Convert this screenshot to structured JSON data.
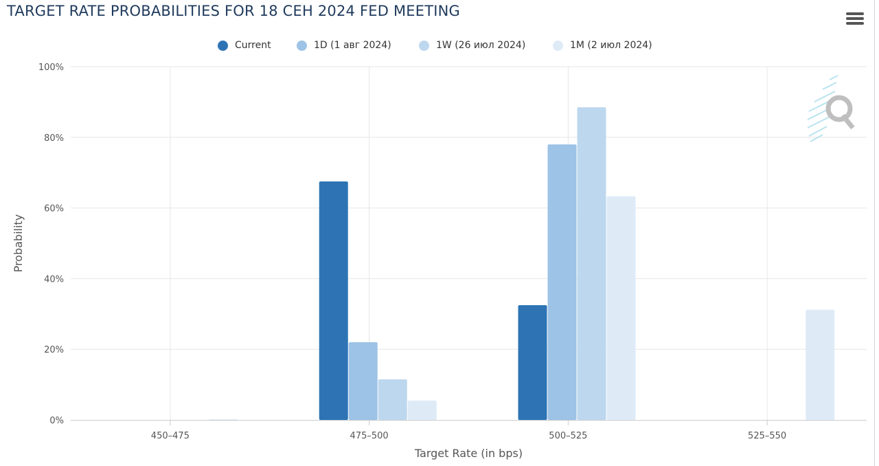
{
  "header": {
    "title": "TARGET RATE PROBABILITIES FOR 18 СЕН 2024 FED MEETING",
    "menu_icon": "hamburger-menu-icon"
  },
  "colors": {
    "series": [
      "#2e74b5",
      "#9dc3e6",
      "#bdd7ee",
      "#deebf7"
    ],
    "title": "#1f3a5c",
    "grid": "#e6e6e6",
    "axis": "#cccccc"
  },
  "chart_data": {
    "type": "bar",
    "title": "TARGET RATE PROBABILITIES FOR 18 СЕН 2024 FED MEETING",
    "xlabel": "Target Rate (in bps)",
    "ylabel": "Probability",
    "ylim": [
      0,
      100
    ],
    "yticks": [
      "0%",
      "20%",
      "40%",
      "60%",
      "80%",
      "100%"
    ],
    "categories": [
      "450-475",
      "475-500",
      "500-525",
      "525-550"
    ],
    "series": [
      {
        "name": "Current",
        "values": [
          0,
          67.5,
          32.5,
          0
        ]
      },
      {
        "name": "1D (1 авг 2024)",
        "values": [
          0,
          22,
          78,
          0
        ]
      },
      {
        "name": "1W (26 июл 2024)",
        "values": [
          0,
          11.5,
          88.5,
          0
        ]
      },
      {
        "name": "1M (2 июл 2024)",
        "values": [
          0.2,
          5.5,
          63.3,
          31.2
        ]
      }
    ],
    "grid": true,
    "legend_position": "top-center"
  }
}
